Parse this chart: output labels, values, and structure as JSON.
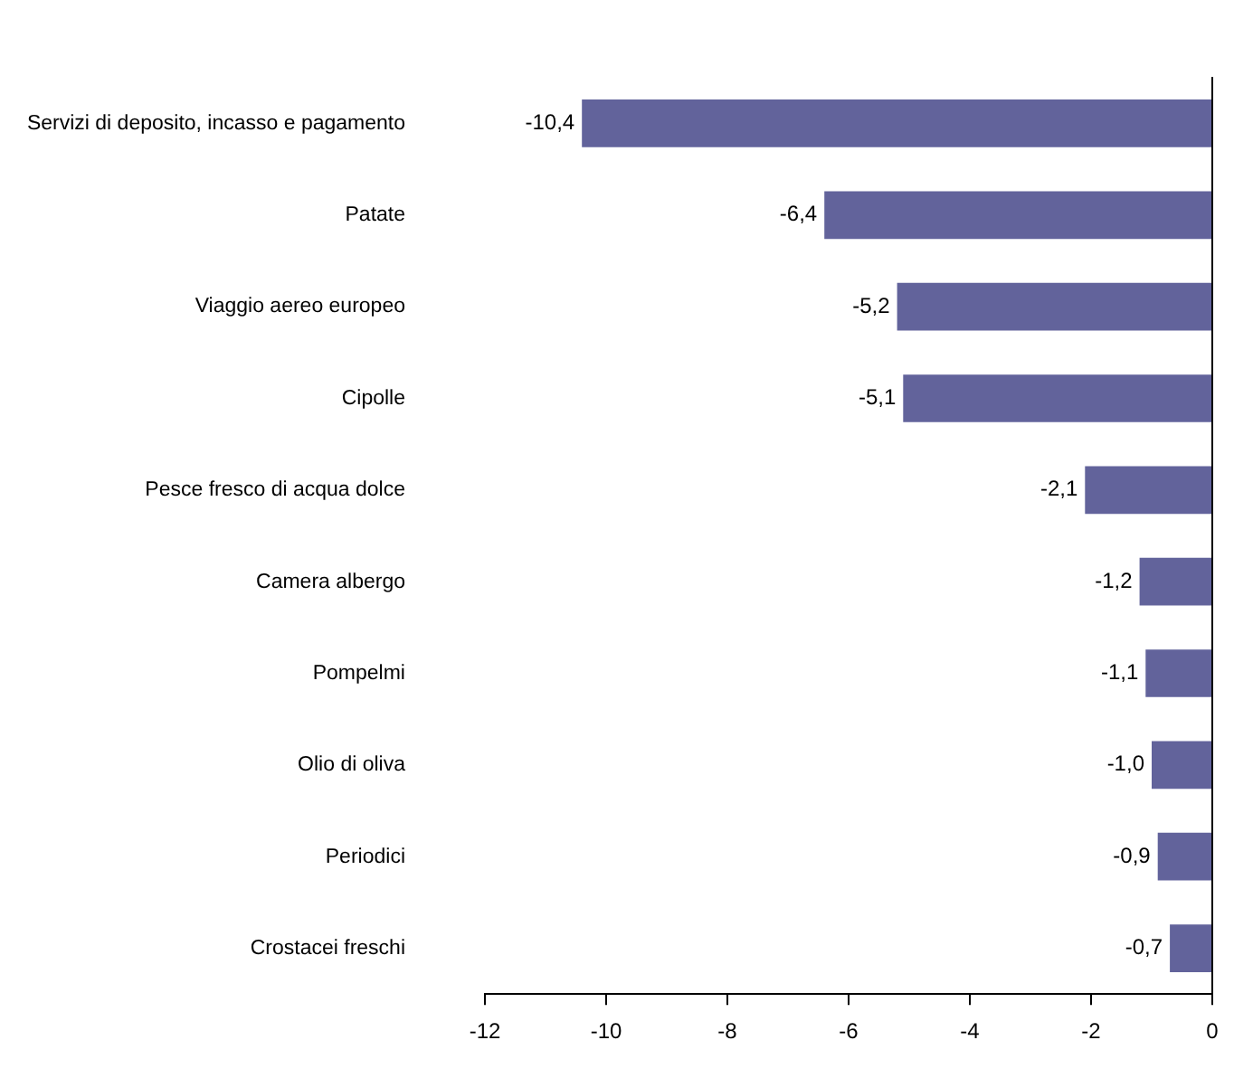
{
  "chart_data": {
    "type": "bar",
    "orientation": "horizontal",
    "categories": [
      "Servizi di deposito, incasso e pagamento",
      "Patate",
      "Viaggio aereo europeo",
      "Cipolle",
      "Pesce fresco di acqua dolce",
      "Camera albergo",
      "Pompelmi",
      "Olio di oliva",
      "Periodici",
      "Crostacei freschi"
    ],
    "values": [
      -10.4,
      -6.4,
      -5.2,
      -5.1,
      -2.1,
      -1.2,
      -1.1,
      -1.0,
      -0.9,
      -0.7
    ],
    "value_labels": [
      "-10,4",
      "-6,4",
      "-5,2",
      "-5,1",
      "-2,1",
      "-1,2",
      "-1,1",
      "-1,0",
      "-0,9",
      "-0,7"
    ],
    "color": "#62639b",
    "xlim": [
      -12,
      0
    ],
    "xticks": [
      -12,
      -10,
      -8,
      -6,
      -4,
      -2,
      0
    ],
    "grid": false,
    "legend": false
  }
}
